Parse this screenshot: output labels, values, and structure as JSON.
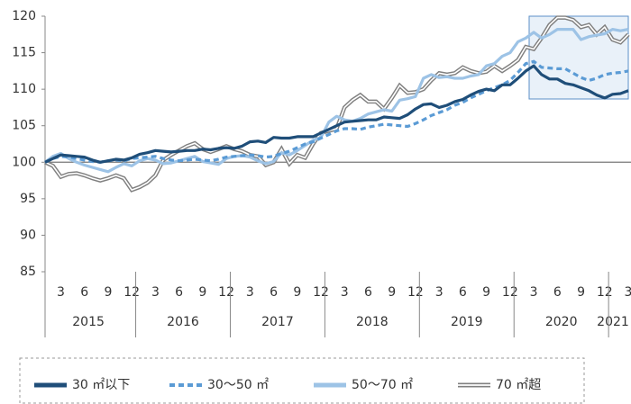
{
  "chart_data": {
    "type": "line",
    "categories": [
      null,
      null,
      "3",
      null,
      null,
      "6",
      null,
      null,
      "9",
      null,
      null,
      "12",
      null,
      null,
      "3",
      null,
      null,
      "6",
      null,
      null,
      "9",
      null,
      null,
      "12",
      null,
      null,
      "3",
      null,
      null,
      "6",
      null,
      null,
      "9",
      null,
      null,
      "12",
      null,
      null,
      "3",
      null,
      null,
      "6",
      null,
      null,
      "9",
      null,
      null,
      "12",
      null,
      null,
      "3",
      null,
      null,
      "6",
      null,
      null,
      "9",
      null,
      null,
      "12",
      null,
      null,
      "3",
      null,
      null,
      "6",
      null,
      null,
      "9",
      null,
      null,
      "12",
      null,
      null,
      "3"
    ],
    "years": [
      "2015",
      "2016",
      "2017",
      "2018",
      "2019",
      "2020",
      "2021"
    ],
    "ylim": [
      85,
      120
    ],
    "yticks": [
      85,
      90,
      95,
      100,
      105,
      110,
      115,
      120
    ],
    "baseline": 100,
    "series": [
      {
        "name": "30 ㎡以下",
        "color": "#1f4e79",
        "style": "solid",
        "values": [
          100,
          100.5,
          101,
          100.9,
          100.8,
          100.7,
          100.3,
          100,
          100.2,
          100.4,
          100.3,
          100.6,
          101.1,
          101.3,
          101.6,
          101.5,
          101.4,
          101.5,
          101.6,
          101.6,
          101.8,
          101.7,
          101.9,
          102,
          101.9,
          102.2,
          102.8,
          102.9,
          102.7,
          103.4,
          103.3,
          103.3,
          103.5,
          103.5,
          103.5,
          104,
          104.5,
          105,
          105.5,
          105.6,
          105.7,
          105.8,
          105.8,
          106.2,
          106.1,
          106,
          106.5,
          107.3,
          107.9,
          108,
          107.5,
          107.8,
          108.3,
          108.6,
          109.2,
          109.7,
          110,
          109.8,
          110.6,
          110.6,
          111.5,
          112.5,
          113.2,
          112,
          111.4,
          111.4,
          110.8,
          110.6,
          110.2,
          109.8,
          109.2,
          108.8,
          109.3,
          109.4,
          109.8
        ]
      },
      {
        "name": "30～50 ㎡",
        "color": "#5b9bd5",
        "style": "dashed",
        "values": [
          100,
          100.5,
          100.8,
          100.7,
          100.5,
          100.3,
          100.1,
          100,
          100.2,
          100.3,
          100.2,
          100.5,
          100.6,
          100.7,
          100.8,
          100.5,
          100.3,
          100.2,
          100.3,
          100.4,
          100.3,
          100.2,
          100.4,
          100.7,
          100.8,
          100.9,
          101,
          100.9,
          100.7,
          100.8,
          101.2,
          101.5,
          102,
          102.5,
          102.8,
          103.3,
          103.8,
          104.3,
          104.6,
          104.6,
          104.5,
          104.8,
          105,
          105.2,
          105.1,
          105,
          104.9,
          105.3,
          105.8,
          106.4,
          106.8,
          107.2,
          107.8,
          108.2,
          108.8,
          109.3,
          109.8,
          110.2,
          110.6,
          111.2,
          112.3,
          113.5,
          113.8,
          113,
          112.9,
          112.8,
          112.8,
          112.2,
          111.6,
          111.2,
          111.5,
          112,
          112.2,
          112.3,
          112.5
        ]
      },
      {
        "name": "50～70 ㎡",
        "color": "#9dc3e6",
        "style": "solid",
        "values": [
          100,
          100.8,
          101.2,
          100.5,
          100,
          99.6,
          99.3,
          99,
          98.7,
          99.3,
          99.8,
          99.5,
          100.2,
          100.5,
          100.3,
          99.8,
          99.9,
          100.2,
          100.5,
          100.8,
          100.1,
          99.9,
          99.7,
          100.5,
          100.8,
          100.9,
          100.7,
          100.2,
          99.8,
          100.1,
          101.3,
          101,
          101.6,
          102.3,
          103,
          103.4,
          105.5,
          106.3,
          105.8,
          105.6,
          106,
          106.6,
          106.9,
          107.2,
          107,
          108.5,
          108.7,
          109,
          111.5,
          112,
          111.6,
          111.7,
          111.5,
          111.5,
          111.8,
          112,
          113.2,
          113.5,
          114.5,
          115,
          116.5,
          117,
          117.8,
          117,
          117.5,
          118.2,
          118.2,
          118.2,
          116.8,
          117.2,
          117.4,
          117.6,
          118.2,
          118,
          118.2
        ]
      },
      {
        "name": "70 ㎡超",
        "color": "#808080",
        "style": "double",
        "values": [
          100,
          99.5,
          98,
          98.4,
          98.5,
          98.2,
          97.8,
          97.5,
          97.8,
          98.2,
          97.8,
          96.2,
          96.6,
          97.2,
          98.2,
          100.3,
          101,
          101.6,
          102.2,
          102.6,
          101.8,
          101.4,
          101.8,
          102.2,
          101.8,
          101.5,
          101,
          100.8,
          99.6,
          100,
          101.8,
          99.8,
          101,
          100.6,
          102.5,
          104,
          104.3,
          104.6,
          107.5,
          108.5,
          109.2,
          108.3,
          108.3,
          107.3,
          108.8,
          110.5,
          109.5,
          109.6,
          110,
          111.2,
          112.2,
          112,
          112.2,
          113,
          112.5,
          112.2,
          112.4,
          113.2,
          112.5,
          113.2,
          114,
          115.8,
          115.5,
          117,
          118.8,
          119.8,
          119.8,
          119.5,
          118.5,
          118.8,
          117.5,
          118.5,
          116.8,
          116.4,
          117.5
        ]
      }
    ]
  }
}
